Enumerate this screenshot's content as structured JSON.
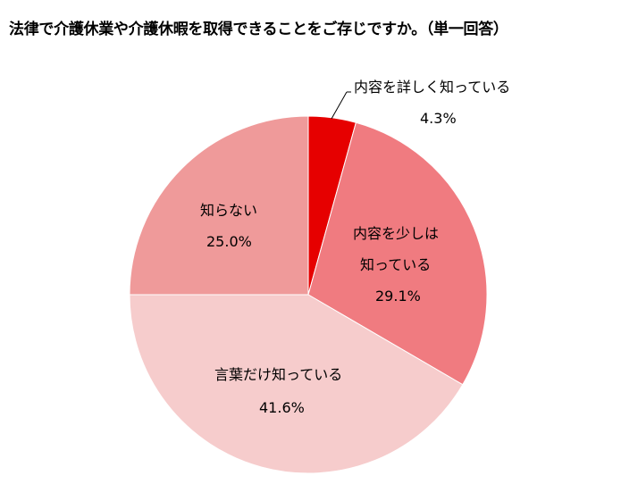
{
  "title": "法律で介護休業や介護休暇を取得できることをご存じですか。（単一回答）",
  "chart_data": {
    "type": "pie",
    "title": "法律で介護休業や介護休暇を取得できることをご存じですか。（単一回答）",
    "categories": [
      "内容を詳しく知っている",
      "内容を少しは知っている",
      "言葉だけ知っている",
      "知らない"
    ],
    "values": [
      4.3,
      29.1,
      41.6,
      25.0
    ],
    "unit": "%",
    "colors": [
      "#e60000",
      "#f07b80",
      "#f6cccc",
      "#ef9a9a"
    ],
    "start_angle": "12 o'clock, clockwise",
    "legend": "none (data labels on slices)"
  },
  "labels": [
    {
      "name": "内容を詳しく知っている",
      "pct": "4.3%"
    },
    {
      "name1": "内容を少しは",
      "name2": "知っている",
      "pct": "29.1%"
    },
    {
      "name": "言葉だけ知っている",
      "pct": "41.6%"
    },
    {
      "name": "知らない",
      "pct": "25.0%"
    }
  ]
}
